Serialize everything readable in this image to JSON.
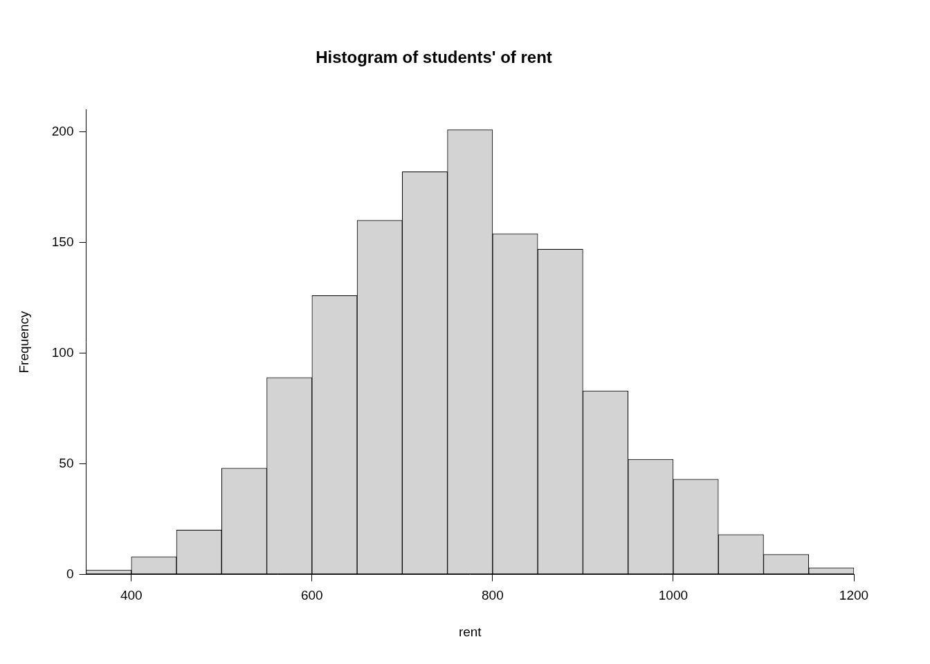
{
  "chart_data": {
    "type": "histogram",
    "title": "Histogram of students' of rent",
    "x_label": "rent",
    "y_label": "Frequency",
    "bins": [
      350,
      400,
      450,
      500,
      550,
      600,
      650,
      700,
      750,
      800,
      850,
      900,
      950,
      1000,
      1050,
      1100,
      1150,
      1200
    ],
    "values": [
      2,
      8,
      20,
      48,
      89,
      126,
      160,
      182,
      201,
      154,
      147,
      83,
      52,
      43,
      18,
      9,
      3
    ],
    "color": "#d3d3d3",
    "xlim": [
      350,
      1200
    ],
    "xticks": [
      400,
      600,
      800,
      1000,
      1200
    ],
    "ylim": [
      0,
      210
    ],
    "yticks": [
      0,
      50,
      100,
      150,
      200
    ],
    "grid": false
  }
}
